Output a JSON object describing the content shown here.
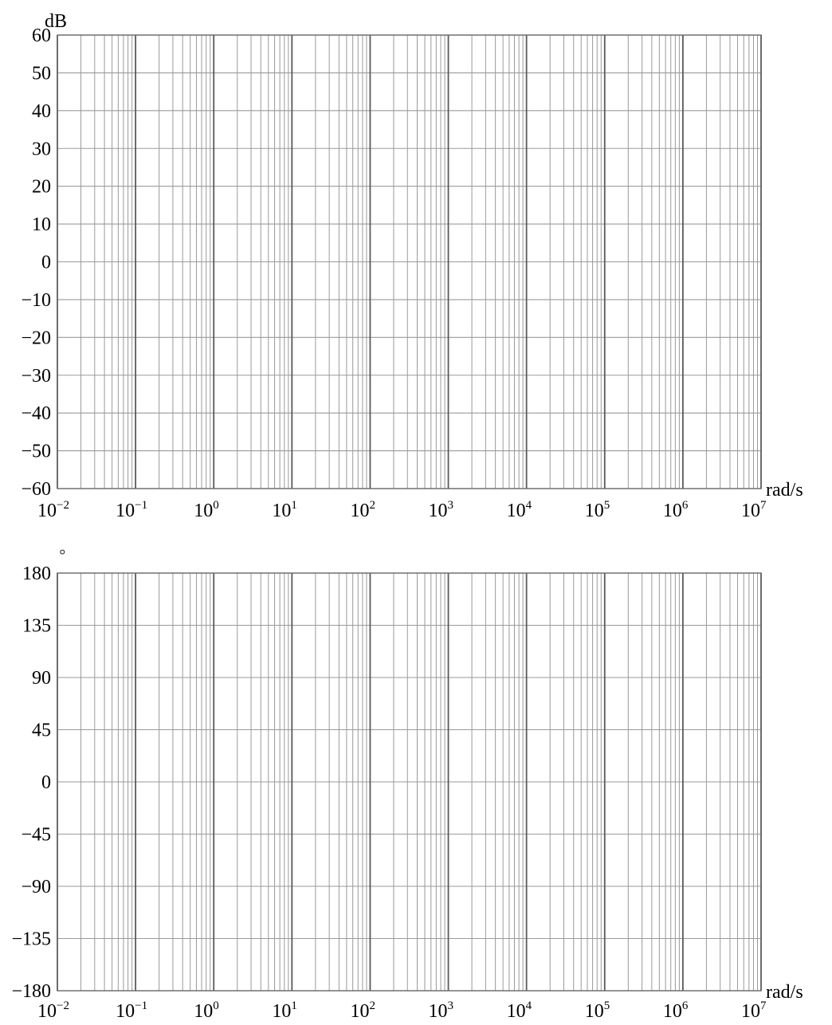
{
  "chart_data": [
    {
      "type": "line",
      "name": "magnitude",
      "x_scale": "log",
      "xlim": [
        0.01,
        10000000
      ],
      "ylim": [
        -60,
        60
      ],
      "grid": true,
      "ylabel": "dB",
      "xlabel": "rad/s",
      "yticks": [
        60,
        50,
        40,
        30,
        20,
        10,
        0,
        -10,
        -20,
        -30,
        -40,
        -50,
        -60
      ],
      "ytick_labels": [
        "60",
        "50",
        "40",
        "30",
        "20",
        "10",
        "0",
        "−10",
        "−20",
        "−30",
        "−40",
        "−50",
        "−60"
      ],
      "xtick_base": "10",
      "xtick_exponents": [
        "−2",
        "−1",
        "0",
        "1",
        "2",
        "3",
        "4",
        "5",
        "6",
        "7"
      ],
      "series": []
    },
    {
      "type": "line",
      "name": "phase",
      "x_scale": "log",
      "xlim": [
        0.01,
        10000000
      ],
      "ylim": [
        -180,
        180
      ],
      "grid": true,
      "ylabel": "◦",
      "xlabel": "rad/s",
      "yticks": [
        180,
        135,
        90,
        45,
        0,
        -45,
        -90,
        -135,
        -180
      ],
      "ytick_labels": [
        "180",
        "135",
        "90",
        "45",
        "0",
        "−45",
        "−90",
        "−135",
        "−180"
      ],
      "xtick_base": "10",
      "xtick_exponents": [
        "−2",
        "−1",
        "0",
        "1",
        "2",
        "3",
        "4",
        "5",
        "6",
        "7"
      ],
      "series": []
    }
  ]
}
